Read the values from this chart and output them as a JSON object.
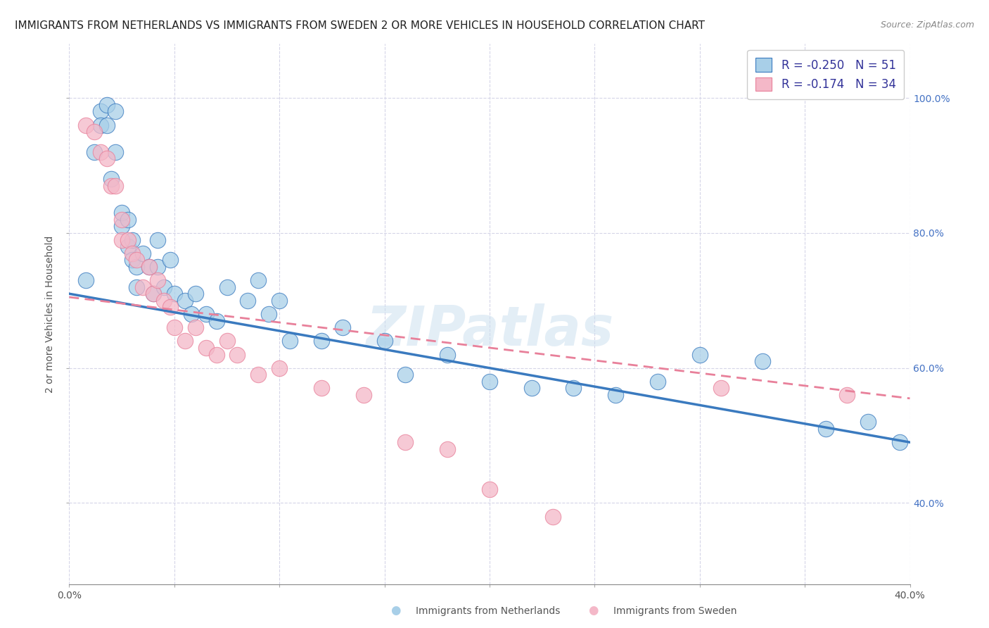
{
  "title": "IMMIGRANTS FROM NETHERLANDS VS IMMIGRANTS FROM SWEDEN 2 OR MORE VEHICLES IN HOUSEHOLD CORRELATION CHART",
  "source": "Source: ZipAtlas.com",
  "xlabel_bottom": [
    "Immigrants from Netherlands",
    "Immigrants from Sweden"
  ],
  "ylabel": "2 or more Vehicles in Household",
  "x_min": 0.0,
  "x_max": 0.4,
  "y_min": 0.28,
  "y_max": 1.08,
  "x_ticks": [
    0.0,
    0.05,
    0.1,
    0.15,
    0.2,
    0.25,
    0.3,
    0.35,
    0.4
  ],
  "y_ticks": [
    0.4,
    0.6,
    0.8,
    1.0
  ],
  "y_tick_labels": [
    "40.0%",
    "60.0%",
    "80.0%",
    "100.0%"
  ],
  "legend_r_blue": "R = -0.250",
  "legend_n_blue": "N = 51",
  "legend_r_pink": "R = -0.174",
  "legend_n_pink": "N = 34",
  "blue_color": "#a8cfe8",
  "pink_color": "#f4b8c8",
  "blue_line_color": "#3a7abf",
  "pink_line_color": "#e8809a",
  "watermark": "ZIPatlas",
  "blue_scatter_x": [
    0.008,
    0.012,
    0.015,
    0.015,
    0.018,
    0.018,
    0.02,
    0.022,
    0.022,
    0.025,
    0.025,
    0.028,
    0.028,
    0.03,
    0.03,
    0.032,
    0.032,
    0.035,
    0.038,
    0.04,
    0.042,
    0.042,
    0.045,
    0.048,
    0.05,
    0.055,
    0.058,
    0.06,
    0.065,
    0.07,
    0.075,
    0.085,
    0.09,
    0.095,
    0.1,
    0.105,
    0.12,
    0.13,
    0.15,
    0.16,
    0.18,
    0.2,
    0.22,
    0.24,
    0.26,
    0.28,
    0.3,
    0.33,
    0.36,
    0.38,
    0.395
  ],
  "blue_scatter_y": [
    0.73,
    0.92,
    0.98,
    0.96,
    0.99,
    0.96,
    0.88,
    0.92,
    0.98,
    0.81,
    0.83,
    0.78,
    0.82,
    0.79,
    0.76,
    0.75,
    0.72,
    0.77,
    0.75,
    0.71,
    0.79,
    0.75,
    0.72,
    0.76,
    0.71,
    0.7,
    0.68,
    0.71,
    0.68,
    0.67,
    0.72,
    0.7,
    0.73,
    0.68,
    0.7,
    0.64,
    0.64,
    0.66,
    0.64,
    0.59,
    0.62,
    0.58,
    0.57,
    0.57,
    0.56,
    0.58,
    0.62,
    0.61,
    0.51,
    0.52,
    0.49
  ],
  "pink_scatter_x": [
    0.008,
    0.012,
    0.015,
    0.018,
    0.02,
    0.022,
    0.025,
    0.025,
    0.028,
    0.03,
    0.032,
    0.035,
    0.038,
    0.04,
    0.042,
    0.045,
    0.048,
    0.05,
    0.055,
    0.06,
    0.065,
    0.07,
    0.075,
    0.08,
    0.09,
    0.1,
    0.12,
    0.14,
    0.16,
    0.18,
    0.2,
    0.23,
    0.31,
    0.37
  ],
  "pink_scatter_y": [
    0.96,
    0.95,
    0.92,
    0.91,
    0.87,
    0.87,
    0.79,
    0.82,
    0.79,
    0.77,
    0.76,
    0.72,
    0.75,
    0.71,
    0.73,
    0.7,
    0.69,
    0.66,
    0.64,
    0.66,
    0.63,
    0.62,
    0.64,
    0.62,
    0.59,
    0.6,
    0.57,
    0.56,
    0.49,
    0.48,
    0.42,
    0.38,
    0.57,
    0.56
  ],
  "blue_line_x": [
    0.0,
    0.4
  ],
  "blue_line_y": [
    0.71,
    0.49
  ],
  "pink_line_x": [
    0.0,
    0.4
  ],
  "pink_line_y": [
    0.705,
    0.555
  ],
  "background_color": "#ffffff",
  "grid_color": "#d5d5e8",
  "title_fontsize": 11,
  "axis_label_fontsize": 10,
  "tick_fontsize": 10,
  "legend_fontsize": 12,
  "source_fontsize": 9
}
